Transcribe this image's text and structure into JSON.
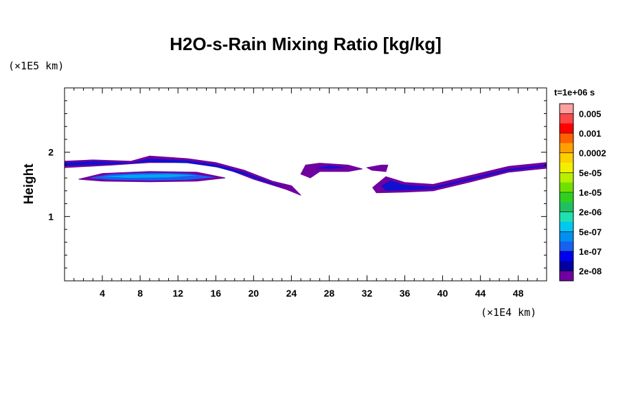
{
  "chart_data": {
    "type": "heatmap",
    "title": "H2O-s-Rain Mixing Ratio [kg/kg]",
    "ylabel": "Height",
    "xlabel": "",
    "x_unit_label": "(×1E4 km)",
    "y_unit_label": "(×1E5 km)",
    "time_label": "t=1e+06 s",
    "x_range": [
      0,
      51
    ],
    "y_range": [
      0,
      3
    ],
    "x_ticks": [
      4,
      8,
      12,
      16,
      20,
      24,
      28,
      32,
      36,
      40,
      44,
      48
    ],
    "y_ticks": [
      1,
      2
    ],
    "grid": false,
    "colorbar": {
      "placement": "right",
      "levels": [
        "0.005",
        "0.001",
        "0.0002",
        "5e-05",
        "1e-05",
        "2e-06",
        "5e-07",
        "1e-07",
        "2e-08"
      ],
      "colors": [
        "#ffa0a0",
        "#f84848",
        "#ff0000",
        "#ff6000",
        "#ffa000",
        "#ffd000",
        "#f0f000",
        "#b8f000",
        "#70e000",
        "#30d020",
        "#20c060",
        "#20e0b0",
        "#00c8f0",
        "#0090f0",
        "#1860f0",
        "#0000f0",
        "#0000a0",
        "#7000a0"
      ]
    },
    "regions": [
      {
        "name": "upper band left",
        "outer": [
          [
            0,
            1.86
          ],
          [
            3,
            1.88
          ],
          [
            7,
            1.86
          ],
          [
            9,
            1.94
          ],
          [
            13,
            1.9
          ],
          [
            16,
            1.84
          ],
          [
            19,
            1.72
          ],
          [
            22,
            1.55
          ],
          [
            24,
            1.48
          ],
          [
            25,
            1.33
          ],
          [
            23.5,
            1.42
          ],
          [
            20,
            1.58
          ],
          [
            17,
            1.75
          ],
          [
            13,
            1.84
          ],
          [
            9,
            1.84
          ],
          [
            5,
            1.8
          ],
          [
            0,
            1.76
          ]
        ],
        "inner": [
          [
            0,
            1.84
          ],
          [
            3,
            1.86
          ],
          [
            7,
            1.84
          ],
          [
            9,
            1.9
          ],
          [
            13,
            1.87
          ],
          [
            16,
            1.81
          ],
          [
            19,
            1.69
          ],
          [
            22,
            1.52
          ],
          [
            23.5,
            1.45
          ],
          [
            22,
            1.5
          ],
          [
            19,
            1.65
          ],
          [
            16,
            1.77
          ],
          [
            13,
            1.83
          ],
          [
            9,
            1.85
          ],
          [
            5,
            1.81
          ],
          [
            0,
            1.79
          ]
        ]
      },
      {
        "name": "lower lens left",
        "outer": [
          [
            1.5,
            1.58
          ],
          [
            4,
            1.67
          ],
          [
            9,
            1.7
          ],
          [
            14,
            1.69
          ],
          [
            17,
            1.6
          ],
          [
            14,
            1.55
          ],
          [
            9,
            1.54
          ],
          [
            4,
            1.55
          ]
        ],
        "inner": [
          [
            2.5,
            1.6
          ],
          [
            5,
            1.66
          ],
          [
            9,
            1.68
          ],
          [
            13,
            1.67
          ],
          [
            16,
            1.61
          ],
          [
            13,
            1.57
          ],
          [
            9,
            1.56
          ],
          [
            5,
            1.57
          ]
        ],
        "core": [
          [
            4,
            1.62
          ],
          [
            7,
            1.65
          ],
          [
            11,
            1.66
          ],
          [
            14,
            1.64
          ],
          [
            11,
            1.61
          ],
          [
            7,
            1.6
          ]
        ]
      },
      {
        "name": "middle patch",
        "outer": [
          [
            25.5,
            1.8
          ],
          [
            27,
            1.83
          ],
          [
            30,
            1.8
          ],
          [
            31.5,
            1.74
          ],
          [
            30,
            1.7
          ],
          [
            27,
            1.7
          ],
          [
            26,
            1.6
          ],
          [
            25,
            1.66
          ]
        ],
        "inner": [
          [
            26.5,
            1.75
          ],
          [
            28,
            1.79
          ],
          [
            30,
            1.76
          ],
          [
            28,
            1.74
          ]
        ]
      },
      {
        "name": "small patch",
        "outer": [
          [
            32,
            1.76
          ],
          [
            33.5,
            1.8
          ],
          [
            34.2,
            1.8
          ],
          [
            34,
            1.7
          ],
          [
            32.5,
            1.72
          ]
        ]
      },
      {
        "name": "upper band right",
        "outer": [
          [
            33,
            1.5
          ],
          [
            34,
            1.62
          ],
          [
            36,
            1.53
          ],
          [
            39,
            1.5
          ],
          [
            43,
            1.64
          ],
          [
            47,
            1.78
          ],
          [
            51,
            1.84
          ],
          [
            51,
            1.75
          ],
          [
            47,
            1.69
          ],
          [
            43,
            1.54
          ],
          [
            39,
            1.4
          ],
          [
            36,
            1.38
          ],
          [
            33,
            1.37
          ],
          [
            32.6,
            1.45
          ]
        ],
        "inner": [
          [
            33.5,
            1.48
          ],
          [
            34.5,
            1.56
          ],
          [
            36,
            1.49
          ],
          [
            39,
            1.46
          ],
          [
            43,
            1.6
          ],
          [
            47,
            1.74
          ],
          [
            51,
            1.8
          ],
          [
            51,
            1.78
          ],
          [
            47,
            1.71
          ],
          [
            43,
            1.57
          ],
          [
            39,
            1.43
          ],
          [
            36,
            1.41
          ],
          [
            34,
            1.4
          ]
        ]
      }
    ]
  }
}
